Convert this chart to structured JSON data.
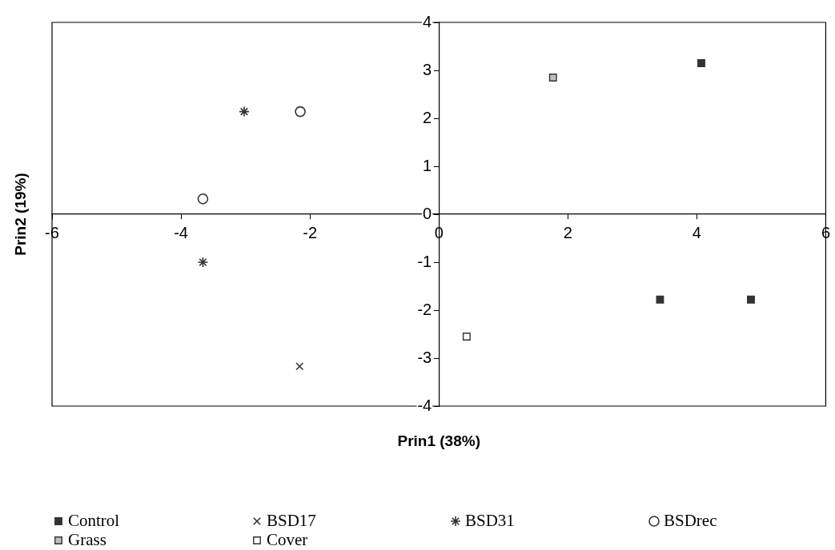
{
  "chart_data": {
    "type": "scatter",
    "xlabel": "Prin1 (38%)",
    "ylabel": "Prin2 (19%)",
    "xlim": [
      -6,
      6
    ],
    "xticks": [
      -6,
      -4,
      -2,
      0,
      2,
      4,
      6
    ],
    "ylim": [
      -4,
      4
    ],
    "yticks": [
      -4,
      -3,
      -2,
      -1,
      0,
      1,
      2,
      3,
      4
    ],
    "grid": false,
    "legend": "bottom",
    "series": [
      {
        "name": "Control",
        "color": "#333333",
        "marker": "square",
        "x": [
          4.07,
          3.43,
          4.84
        ],
        "values": [
          3.15,
          -1.78,
          -1.78
        ]
      },
      {
        "name": "BSD17",
        "color": "#333333",
        "marker": "cross",
        "x": [
          -2.16
        ],
        "values": [
          -3.17
        ]
      },
      {
        "name": "BSD31",
        "color": "#333333",
        "x": [
          -3.02,
          -3.66
        ],
        "values": [
          2.14,
          -1.0
        ]
      },
      {
        "name": "BSDrec",
        "color": "#333333",
        "marker": "circle",
        "x": [
          -2.15,
          -3.66
        ],
        "values": [
          2.14,
          0.32
        ]
      },
      {
        "name": "Grass",
        "color": "#c0c0c0",
        "marker": "square",
        "x": [
          1.77
        ],
        "values": [
          2.85
        ]
      },
      {
        "name": "Cover",
        "color": "#ffffff",
        "marker": "square",
        "x": [
          0.43
        ],
        "values": [
          -2.55
        ]
      }
    ]
  }
}
